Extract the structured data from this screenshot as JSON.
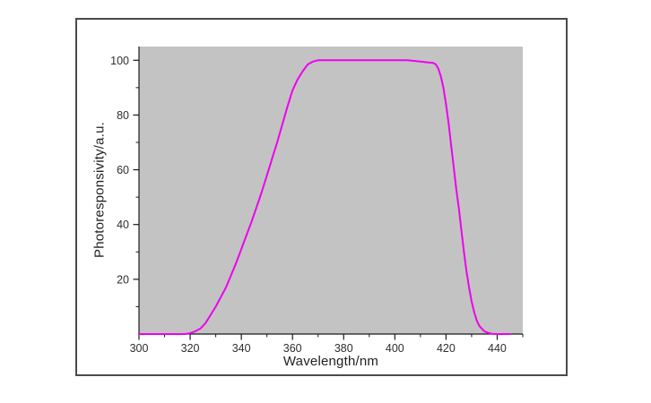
{
  "chart_data": {
    "type": "line",
    "title": "",
    "xlabel": "Wavelength/nm",
    "ylabel": "Photoresponsivity/a.u.",
    "xlim": [
      300,
      450
    ],
    "ylim": [
      0,
      105
    ],
    "x_major_ticks": [
      300,
      320,
      340,
      360,
      380,
      400,
      420,
      440
    ],
    "x_minor_ticks": [
      310,
      330,
      350,
      370,
      390,
      410,
      430,
      450
    ],
    "y_major_ticks": [
      20,
      40,
      60,
      80,
      100
    ],
    "y_minor_ticks": [
      10,
      30,
      50,
      70,
      90
    ],
    "grid": false,
    "legend_position": "none",
    "plot_bg": "#c3c3c3",
    "line_color": "#ee00ee",
    "axis_color": "#1a1a1a",
    "tick_label_color": "#2e2e2e",
    "frame_border_color": "#4a4a4a",
    "series": [
      {
        "name": "photoresponsivity-curve",
        "x": [
          300,
          305,
          310,
          315,
          318,
          320,
          322,
          324,
          326,
          328,
          330,
          332,
          334,
          336,
          338,
          340,
          342,
          344,
          346,
          348,
          350,
          352,
          354,
          356,
          358,
          360,
          362,
          364,
          366,
          368,
          370,
          375,
          380,
          385,
          390,
          395,
          400,
          405,
          410,
          413,
          415,
          416,
          417,
          418,
          419,
          420,
          421,
          422,
          423,
          424,
          425,
          426,
          427,
          428,
          429,
          430,
          431,
          432,
          433,
          434,
          435,
          436,
          437,
          438,
          440,
          442,
          445
        ],
        "y": [
          0,
          0,
          0,
          0,
          0,
          0.3,
          1,
          2,
          4,
          7,
          10,
          13.5,
          17,
          21.5,
          26,
          31,
          36,
          41,
          46.5,
          52,
          58,
          64,
          70,
          76.5,
          83,
          89,
          93,
          96,
          98.5,
          99.5,
          100,
          100,
          100,
          100,
          100,
          100,
          100,
          100,
          99.5,
          99.2,
          99,
          98.5,
          97,
          94,
          90,
          84,
          77,
          69,
          61,
          53,
          46,
          38,
          30,
          23,
          17,
          12,
          8,
          5,
          3,
          2,
          1,
          0.6,
          0.3,
          0.1,
          0,
          0,
          0
        ]
      }
    ]
  }
}
